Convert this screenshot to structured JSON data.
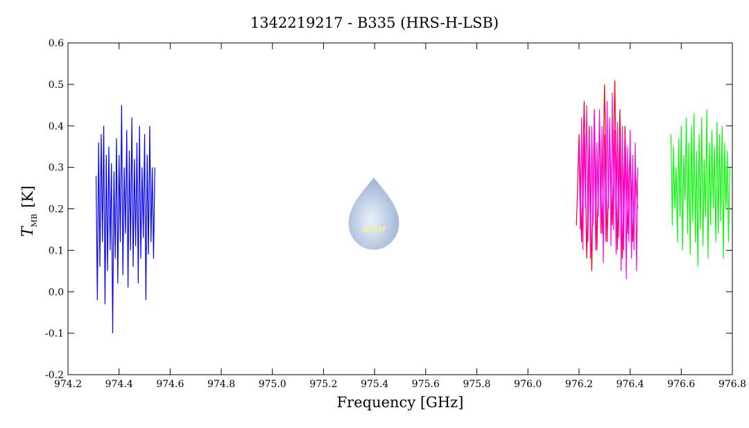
{
  "chart_data": {
    "type": "line",
    "title": "1342219217 - B335 (HRS-H-LSB)",
    "xlabel": "Frequency [GHz]",
    "ylabel_symbol": "T",
    "ylabel_subscript": "MB",
    "ylabel_unit": "[K]",
    "watermark": "WISH",
    "xlim": [
      974.2,
      976.8
    ],
    "xticks": [
      974.2,
      974.4,
      974.6,
      974.8,
      {
        "value": 975,
        "label": "975.0"
      },
      975.2,
      975.4,
      975.6,
      975.8,
      {
        "value": 976,
        "label": "976.0"
      },
      976.2,
      976.4,
      976.6,
      976.8
    ],
    "ylim": [
      -0.2,
      0.6
    ],
    "yticks": [
      -0.2,
      -0.1,
      {
        "value": 0,
        "label": "0.0"
      },
      0.1,
      0.2,
      0.3,
      0.4,
      0.5,
      0.6
    ],
    "series": [
      {
        "color": "#0000ff",
        "x": [
          974.31,
          974.315,
          974.32,
          974.325,
          974.33,
          974.335,
          974.34,
          974.345,
          974.35,
          974.355,
          974.36,
          974.365,
          974.37,
          974.375,
          974.38,
          974.385,
          974.39,
          974.395,
          974.4,
          974.405,
          974.41,
          974.415,
          974.42,
          974.425,
          974.43,
          974.435,
          974.44,
          974.445,
          974.45,
          974.455,
          974.46,
          974.465,
          974.47,
          974.475,
          974.48,
          974.485,
          974.49,
          974.495,
          974.5,
          974.505,
          974.51,
          974.515,
          974.52,
          974.525,
          974.53,
          974.535,
          974.54
        ],
        "values": [
          0.28,
          -0.02,
          0.36,
          0.06,
          0.38,
          0.12,
          0.4,
          -0.03,
          0.33,
          0.05,
          0.35,
          0.1,
          0.31,
          -0.1,
          0.29,
          0.08,
          0.37,
          0.02,
          0.33,
          0.12,
          0.45,
          0.04,
          0.3,
          0.14,
          0.39,
          0.01,
          0.34,
          0.1,
          0.42,
          0.06,
          0.32,
          0.11,
          0.36,
          0.02,
          0.4,
          0.08,
          0.3,
          0.13,
          0.38,
          -0.02,
          0.33,
          0.09,
          0.4,
          0.12,
          0.3,
          0.08,
          0.3
        ]
      },
      {
        "color": "#ff0000",
        "x": [
          976.19,
          976.2,
          976.21,
          976.22,
          976.23,
          976.24,
          976.25,
          976.26,
          976.27,
          976.28,
          976.29,
          976.3,
          976.31,
          976.32,
          976.33,
          976.34,
          976.35,
          976.36,
          976.37,
          976.38,
          976.39,
          976.4,
          976.41,
          976.42,
          976.43
        ],
        "values": [
          0.16,
          0.38,
          0.12,
          0.46,
          0.08,
          0.4,
          0.05,
          0.44,
          0.1,
          0.42,
          0.14,
          0.5,
          0.12,
          0.38,
          0.16,
          0.51,
          0.1,
          0.44,
          0.08,
          0.4,
          0.14,
          0.36,
          0.12,
          0.3,
          0.2
        ]
      },
      {
        "color": "#ff00ff",
        "x": [
          976.2,
          976.205,
          976.21,
          976.215,
          976.22,
          976.225,
          976.23,
          976.235,
          976.24,
          976.245,
          976.25,
          976.255,
          976.26,
          976.265,
          976.27,
          976.275,
          976.28,
          976.285,
          976.29,
          976.295,
          976.3,
          976.305,
          976.31,
          976.315,
          976.32,
          976.325,
          976.33,
          976.335,
          976.34,
          976.345,
          976.35,
          976.355,
          976.36,
          976.365,
          976.37,
          976.375,
          976.38,
          976.385,
          976.39,
          976.395,
          976.4,
          976.405,
          976.41,
          976.415,
          976.42,
          976.425,
          976.43
        ],
        "values": [
          0.35,
          0.15,
          0.42,
          0.1,
          0.38,
          0.2,
          0.45,
          0.12,
          0.37,
          0.08,
          0.4,
          0.16,
          0.43,
          0.1,
          0.36,
          0.18,
          0.44,
          0.14,
          0.4,
          0.07,
          0.38,
          0.12,
          0.46,
          0.2,
          0.42,
          0.11,
          0.48,
          0.15,
          0.39,
          0.09,
          0.41,
          0.13,
          0.37,
          0.05,
          0.4,
          0.1,
          0.38,
          0.03,
          0.35,
          0.12,
          0.39,
          0.08,
          0.33,
          0.1,
          0.36,
          0.05,
          0.3
        ]
      },
      {
        "color": "#00ff00",
        "x": [
          976.56,
          976.565,
          976.57,
          976.575,
          976.58,
          976.585,
          976.59,
          976.595,
          976.6,
          976.605,
          976.61,
          976.615,
          976.62,
          976.625,
          976.63,
          976.635,
          976.64,
          976.645,
          976.65,
          976.655,
          976.66,
          976.665,
          976.67,
          976.675,
          976.68,
          976.685,
          976.69,
          976.695,
          976.7,
          976.705,
          976.71,
          976.715,
          976.72,
          976.725,
          976.73,
          976.735,
          976.74,
          976.745,
          976.75,
          976.755,
          976.76,
          976.765,
          976.77,
          976.775,
          976.78,
          976.785,
          976.79
        ],
        "values": [
          0.38,
          0.16,
          0.35,
          0.2,
          0.3,
          0.12,
          0.37,
          0.18,
          0.4,
          0.1,
          0.33,
          0.22,
          0.42,
          0.14,
          0.36,
          0.09,
          0.4,
          0.17,
          0.43,
          0.12,
          0.34,
          0.06,
          0.38,
          0.15,
          0.42,
          0.11,
          0.32,
          0.18,
          0.44,
          0.08,
          0.36,
          0.16,
          0.39,
          0.2,
          0.35,
          0.12,
          0.41,
          0.14,
          0.38,
          0.17,
          0.4,
          0.08,
          0.36,
          0.2,
          0.34,
          0.12,
          0.3
        ]
      }
    ]
  }
}
